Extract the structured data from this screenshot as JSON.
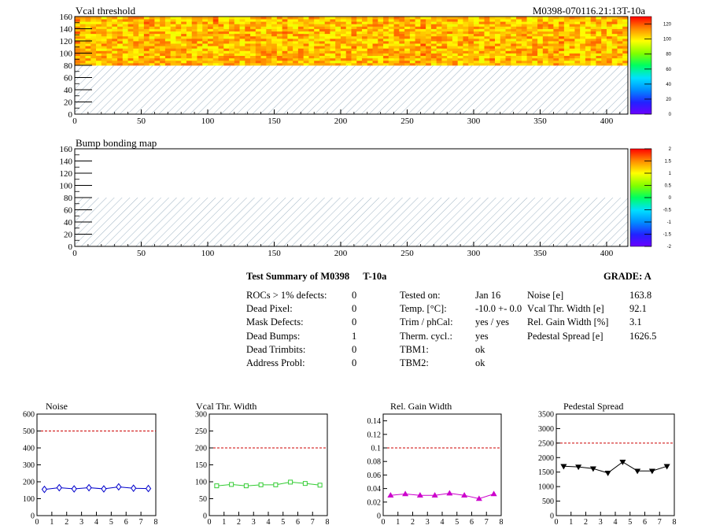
{
  "header": {
    "module_id": "M0398-070116.21:13T-10a"
  },
  "colors": {
    "hatch": "#9fb4c4",
    "noise_line": "#0000cc",
    "vcal_line": "#33cc33",
    "gain_line": "#cc00cc",
    "ped_line": "#000000",
    "limit_line": "#cc0000"
  },
  "chart_data": [
    {
      "id": "vcal-threshold-map",
      "type": "heatmap",
      "title": "Vcal threshold",
      "x_ticks": [
        "0",
        "50",
        "100",
        "150",
        "200",
        "250",
        "300",
        "350",
        "400"
      ],
      "y_ticks": [
        "0",
        "20",
        "40",
        "60",
        "80",
        "100",
        "120",
        "140",
        "160"
      ],
      "xlim": [
        0,
        416
      ],
      "ylim": [
        0,
        160
      ],
      "filled_rows": [
        80,
        160
      ],
      "hatched_rows": [
        0,
        80
      ],
      "colorbar_ticks": [
        "0",
        "20",
        "40",
        "60",
        "80",
        "100",
        "120"
      ],
      "zlim": [
        0,
        130
      ],
      "typical_value_range": [
        95,
        118
      ]
    },
    {
      "id": "bump-bonding-map",
      "type": "heatmap",
      "title": "Bump bonding map",
      "x_ticks": [
        "0",
        "50",
        "100",
        "150",
        "200",
        "250",
        "300",
        "350",
        "400"
      ],
      "y_ticks": [
        "0",
        "20",
        "40",
        "60",
        "80",
        "100",
        "120",
        "140",
        "160"
      ],
      "xlim": [
        0,
        416
      ],
      "ylim": [
        0,
        160
      ],
      "hatched_rows": [
        0,
        80
      ],
      "colorbar_ticks": [
        "-2",
        "-1.5",
        "-1",
        "-0.5",
        "0",
        "0.5",
        "1",
        "1.5",
        "2"
      ],
      "zlim": [
        -2,
        2
      ]
    },
    {
      "id": "noise-plot",
      "type": "line",
      "title": "Noise",
      "x": [
        0.5,
        1.5,
        2.5,
        3.5,
        4.5,
        5.5,
        6.5,
        7.5
      ],
      "values": [
        155,
        165,
        158,
        165,
        158,
        170,
        162,
        160
      ],
      "xlim": [
        0,
        8
      ],
      "ylim": [
        0,
        600
      ],
      "x_ticks": [
        "0",
        "1",
        "2",
        "3",
        "4",
        "5",
        "6",
        "7",
        "8"
      ],
      "y_ticks": [
        "0",
        "100",
        "200",
        "300",
        "400",
        "500",
        "600"
      ],
      "limit": 500,
      "marker": "diamond"
    },
    {
      "id": "vcal-width-plot",
      "type": "line",
      "title": "Vcal Thr. Width",
      "x": [
        0.5,
        1.5,
        2.5,
        3.5,
        4.5,
        5.5,
        6.5,
        7.5
      ],
      "values": [
        88,
        92,
        88,
        91,
        91,
        99,
        95,
        90
      ],
      "xlim": [
        0,
        8
      ],
      "ylim": [
        0,
        300
      ],
      "x_ticks": [
        "0",
        "1",
        "2",
        "3",
        "4",
        "5",
        "6",
        "7",
        "8"
      ],
      "y_ticks": [
        "0",
        "50",
        "100",
        "150",
        "200",
        "250",
        "300"
      ],
      "limit": 200,
      "marker": "square"
    },
    {
      "id": "gain-width-plot",
      "type": "line",
      "title": "Rel. Gain Width",
      "x": [
        0.5,
        1.5,
        2.5,
        3.5,
        4.5,
        5.5,
        6.5,
        7.5
      ],
      "values": [
        0.03,
        0.032,
        0.03,
        0.03,
        0.033,
        0.03,
        0.025,
        0.032
      ],
      "xlim": [
        0,
        8
      ],
      "ylim": [
        0,
        0.15
      ],
      "x_ticks": [
        "0",
        "1",
        "2",
        "3",
        "4",
        "5",
        "6",
        "7",
        "8"
      ],
      "y_ticks": [
        "0",
        "0.02",
        "0.04",
        "0.06",
        "0.08",
        "0.1",
        "0.12",
        "0.14"
      ],
      "limit": 0.1,
      "marker": "triangle-up"
    },
    {
      "id": "pedestal-spread-plot",
      "type": "line",
      "title": "Pedestal Spread",
      "x": [
        0.5,
        1.5,
        2.5,
        3.5,
        4.5,
        5.5,
        6.5,
        7.5
      ],
      "values": [
        1700,
        1680,
        1620,
        1470,
        1850,
        1540,
        1540,
        1700
      ],
      "xlim": [
        0,
        8
      ],
      "ylim": [
        0,
        3500
      ],
      "x_ticks": [
        "0",
        "1",
        "2",
        "3",
        "4",
        "5",
        "6",
        "7",
        "8"
      ],
      "y_ticks": [
        "0",
        "500",
        "1000",
        "1500",
        "2000",
        "2500",
        "3000",
        "3500"
      ],
      "limit": 2500,
      "marker": "triangle-down"
    }
  ],
  "summary": {
    "title": "Test Summary of M0398",
    "temp_tag": "T-10a",
    "grade": "GRADE:  A",
    "defects": [
      {
        "label": "ROCs > 1% defects:",
        "value": "0"
      },
      {
        "label": "Dead Pixel:",
        "value": "0"
      },
      {
        "label": "Mask Defects:",
        "value": "0"
      },
      {
        "label": "Dead Bumps:",
        "value": "1"
      },
      {
        "label": "Dead Trimbits:",
        "value": "0"
      },
      {
        "label": "Address Probl:",
        "value": "0"
      }
    ],
    "conditions": [
      {
        "label": "Tested on:",
        "value": "Jan 16"
      },
      {
        "label": "Temp. [°C]:",
        "value": "-10.0 +- 0.0"
      },
      {
        "label": "Trim / phCal:",
        "value": "yes / yes"
      },
      {
        "label": "Therm. cycl.:",
        "value": "yes"
      },
      {
        "label": "TBM1:",
        "value": "ok"
      },
      {
        "label": "TBM2:",
        "value": "ok"
      }
    ],
    "results": [
      {
        "label": "Noise [e]",
        "value": "163.8"
      },
      {
        "label": "Vcal Thr. Width [e]",
        "value": "92.1"
      },
      {
        "label": "Rel. Gain Width [%]",
        "value": "3.1"
      },
      {
        "label": "Pedestal Spread [e]",
        "value": "1626.5"
      }
    ]
  }
}
